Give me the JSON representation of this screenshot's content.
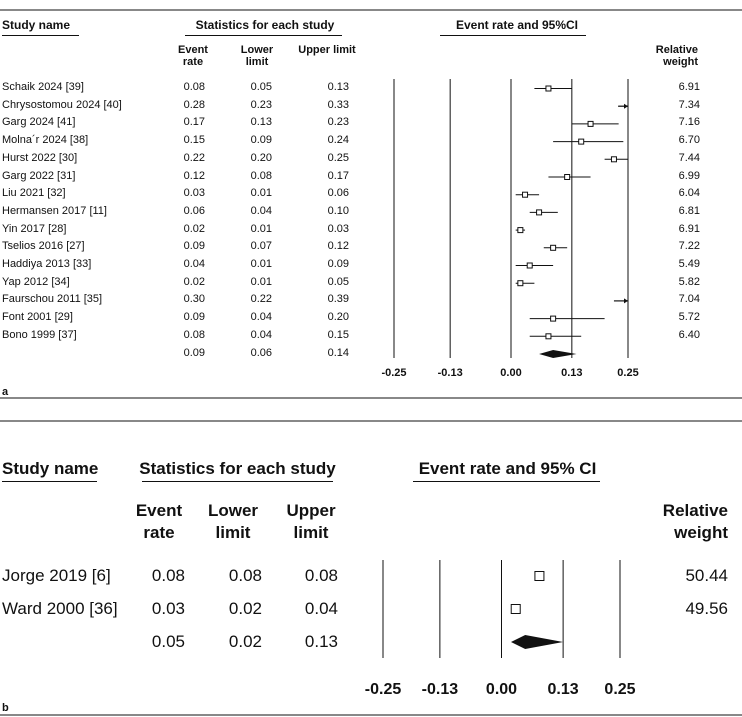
{
  "chart_data": [
    {
      "type": "forest",
      "panel_label": "a",
      "headers": {
        "study_name": "Study name",
        "statistics": "Statistics for each study",
        "event_rate_ci": "Event rate and 95%CI",
        "event_rate": "Event rate",
        "lower_limit": "Lower limit",
        "upper_limit": "Upper limit",
        "relative_weight": "Relative weight"
      },
      "studies": [
        {
          "name": "Schaik 2024 [39]",
          "event_rate": "0.08",
          "lower": "0.05",
          "upper": "0.13",
          "weight": "6.91"
        },
        {
          "name": "Chrysostomou 2024 [40]",
          "event_rate": "0.28",
          "lower": "0.23",
          "upper": "0.33",
          "weight": "7.34"
        },
        {
          "name": "Garg 2024 [41]",
          "event_rate": "0.17",
          "lower": "0.13",
          "upper": "0.23",
          "weight": "7.16"
        },
        {
          "name": "Molna´r 2024 [38]",
          "event_rate": "0.15",
          "lower": "0.09",
          "upper": "0.24",
          "weight": "6.70"
        },
        {
          "name": "Hurst 2022 [30]",
          "event_rate": "0.22",
          "lower": "0.20",
          "upper": "0.25",
          "weight": "7.44"
        },
        {
          "name": "Garg 2022 [31]",
          "event_rate": "0.12",
          "lower": "0.08",
          "upper": "0.17",
          "weight": "6.99"
        },
        {
          "name": "Liu 2021 [32]",
          "event_rate": "0.03",
          "lower": "0.01",
          "upper": "0.06",
          "weight": "6.04"
        },
        {
          "name": "Hermansen 2017 [11]",
          "event_rate": "0.06",
          "lower": "0.04",
          "upper": "0.10",
          "weight": "6.81"
        },
        {
          "name": "Yin 2017 [28]",
          "event_rate": "0.02",
          "lower": "0.01",
          "upper": "0.03",
          "weight": "6.91"
        },
        {
          "name": "Tselios 2016 [27]",
          "event_rate": "0.09",
          "lower": "0.07",
          "upper": "0.12",
          "weight": "7.22"
        },
        {
          "name": "Haddiya 2013 [33]",
          "event_rate": "0.04",
          "lower": "0.01",
          "upper": "0.09",
          "weight": "5.49"
        },
        {
          "name": "Yap 2012 [34]",
          "event_rate": "0.02",
          "lower": "0.01",
          "upper": "0.05",
          "weight": "5.82"
        },
        {
          "name": "Faurschou 2011 [35]",
          "event_rate": "0.30",
          "lower": "0.22",
          "upper": "0.39",
          "weight": "7.04"
        },
        {
          "name": "Font 2001 [29]",
          "event_rate": "0.09",
          "lower": "0.04",
          "upper": "0.20",
          "weight": "5.72"
        },
        {
          "name": "Bono 1999 [37]",
          "event_rate": "0.08",
          "lower": "0.04",
          "upper": "0.15",
          "weight": "6.40"
        }
      ],
      "pooled": {
        "event_rate": "0.09",
        "lower": "0.06",
        "upper": "0.14"
      },
      "axis": {
        "ticks": [
          -0.25,
          -0.13,
          0.0,
          0.13,
          0.25
        ],
        "tick_labels": [
          "-0.25",
          "-0.13",
          "0.00",
          "0.13",
          "0.25"
        ],
        "xlim": [
          -0.25,
          0.25
        ]
      }
    },
    {
      "type": "forest",
      "panel_label": "b",
      "headers": {
        "study_name": "Study name",
        "statistics": "Statistics for each study",
        "event_rate_ci": "Event rate and 95% CI",
        "event_rate": "Event rate",
        "lower_limit": "Lower limit",
        "upper_limit": "Upper limit",
        "relative_weight": "Relative weight"
      },
      "studies": [
        {
          "name": "Jorge 2019 [6]",
          "event_rate": "0.08",
          "lower": "0.08",
          "upper": "0.08",
          "weight": "50.44"
        },
        {
          "name": "Ward 2000 [36]",
          "event_rate": "0.03",
          "lower": "0.02",
          "upper": "0.04",
          "weight": "49.56"
        }
      ],
      "pooled": {
        "event_rate": "0.05",
        "lower": "0.02",
        "upper": "0.13"
      },
      "axis": {
        "ticks": [
          -0.25,
          -0.13,
          0.0,
          0.13,
          0.25
        ],
        "tick_labels": [
          "-0.25",
          "-0.13",
          "0.00",
          "0.13",
          "0.25"
        ],
        "xlim": [
          -0.25,
          0.25
        ]
      }
    }
  ]
}
